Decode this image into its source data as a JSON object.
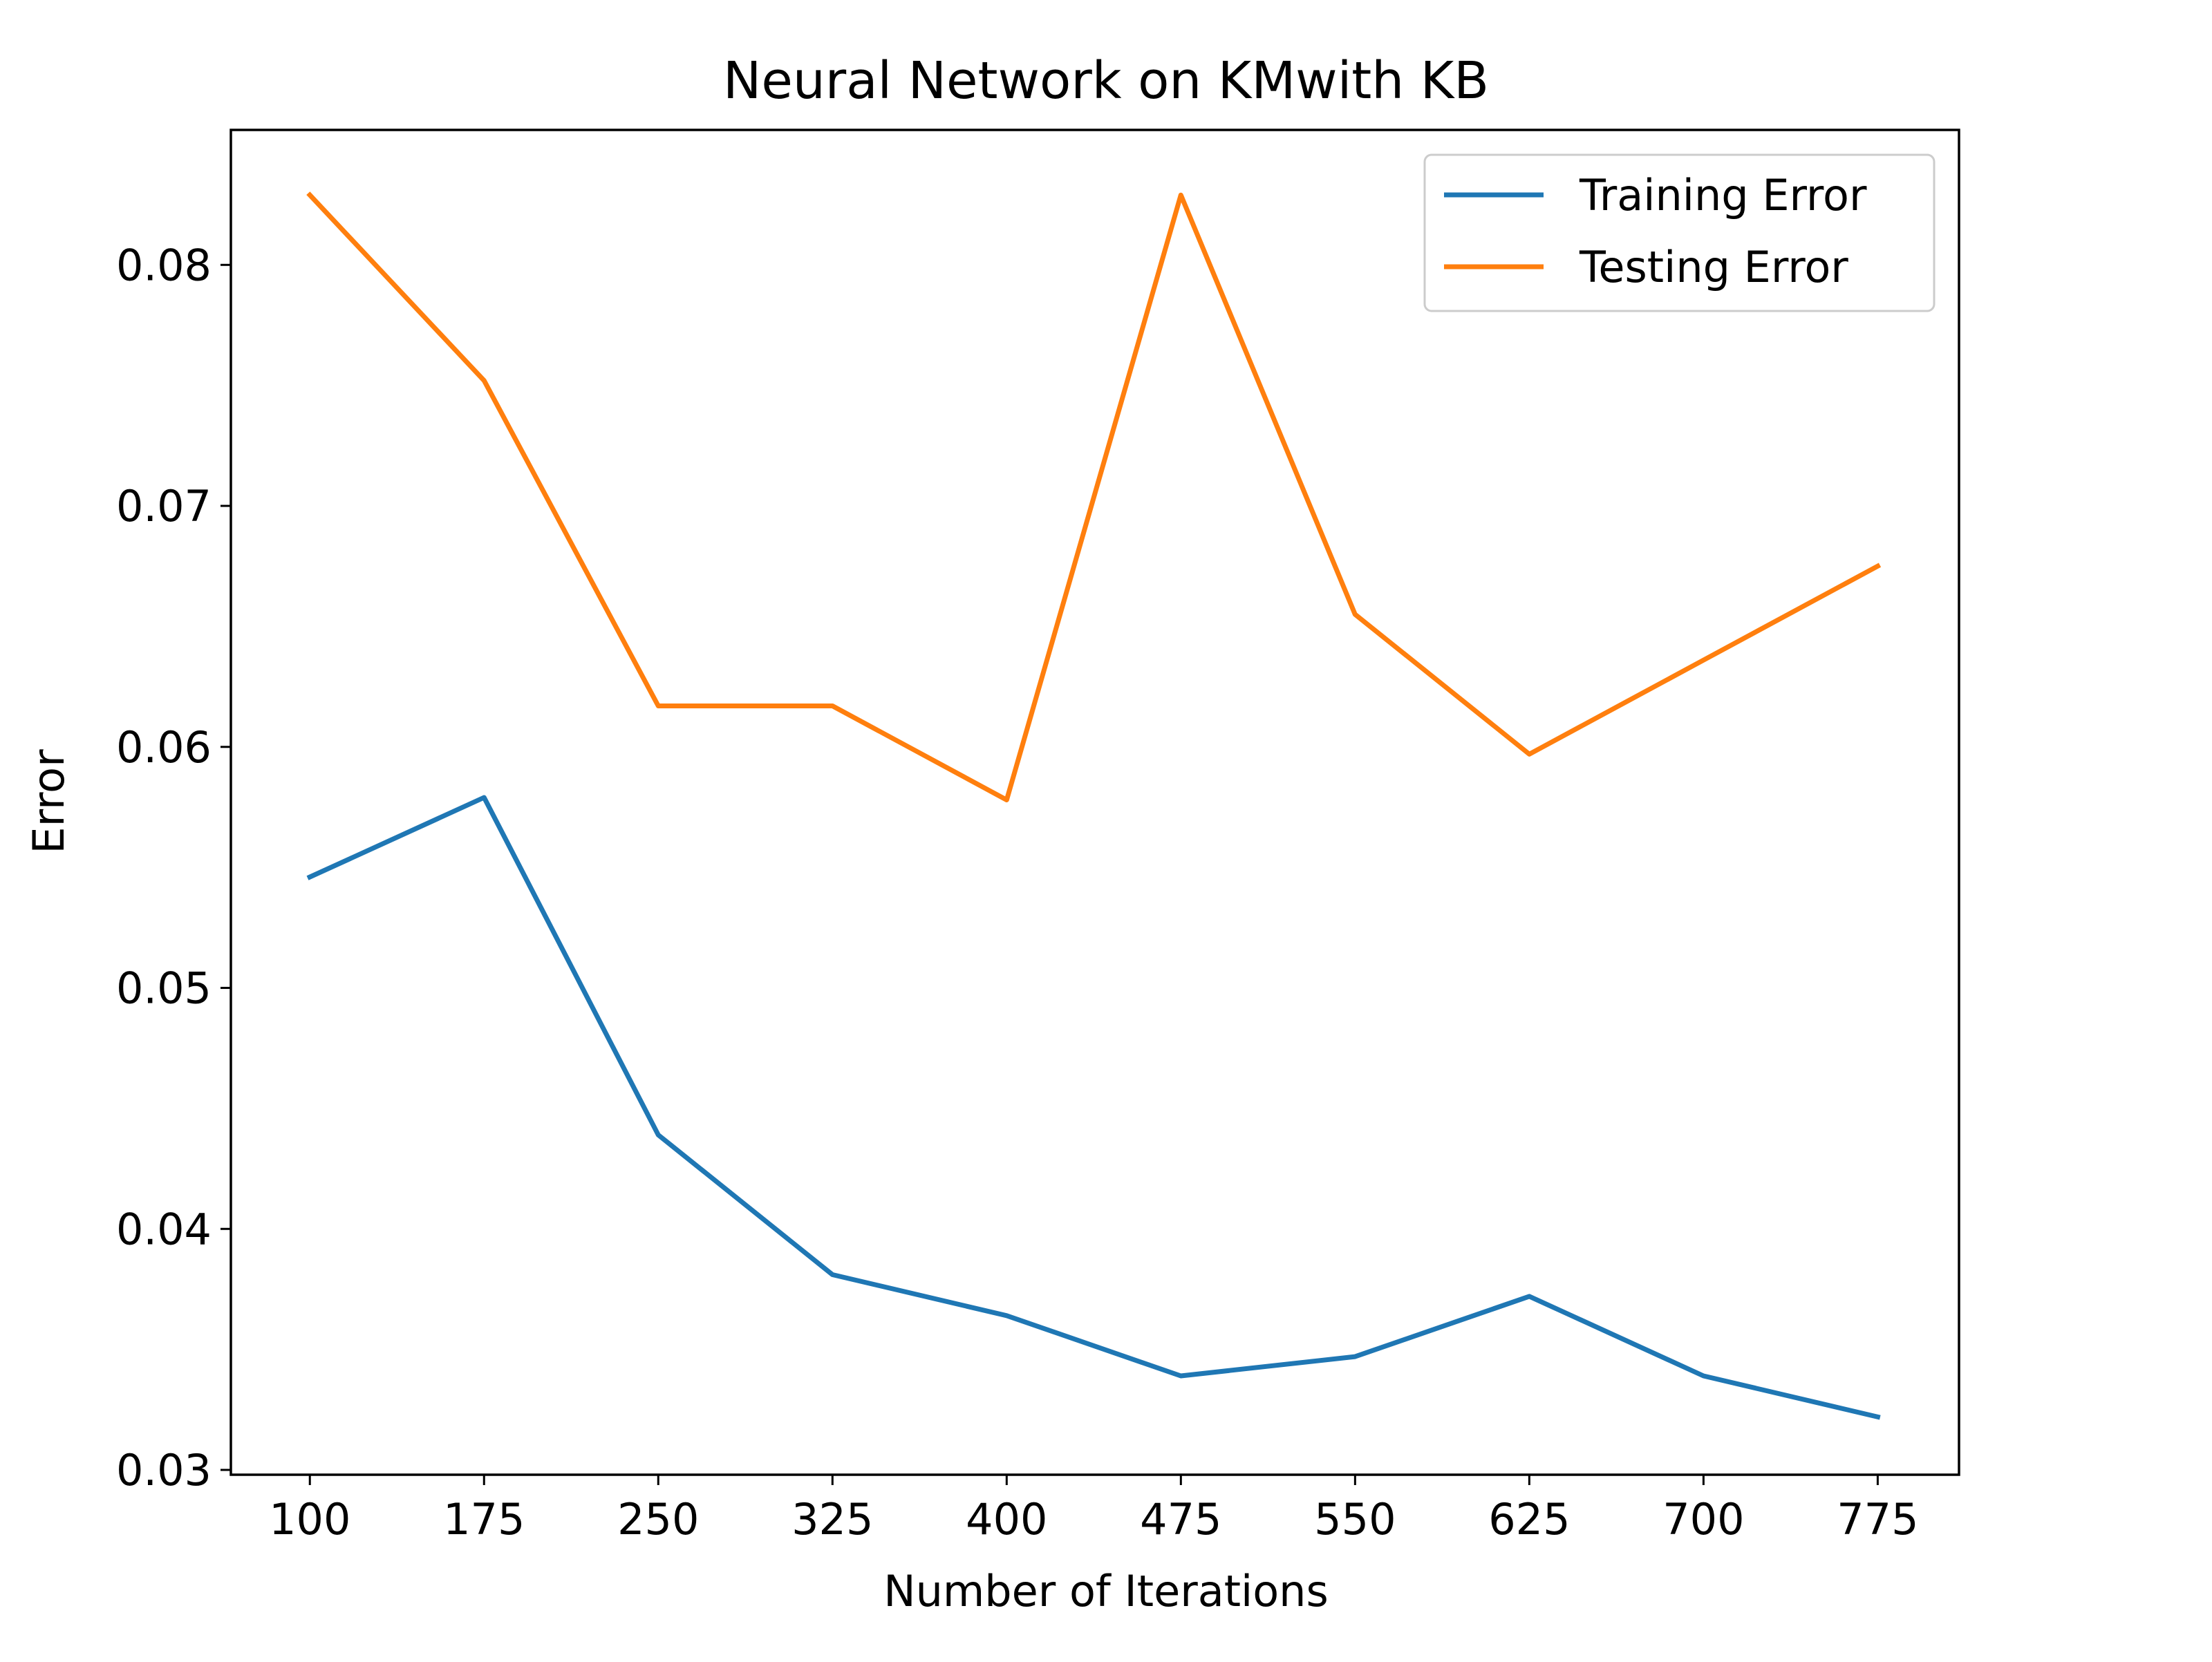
{
  "chart_data": {
    "type": "line",
    "title": "Neural Network on KMwith KB",
    "xlabel": "Number of Iterations",
    "ylabel": "Error",
    "x": [
      100,
      175,
      250,
      325,
      400,
      475,
      550,
      625,
      700,
      775
    ],
    "xticks": [
      "100",
      "175",
      "250",
      "325",
      "400",
      "475",
      "550",
      "625",
      "700",
      "775"
    ],
    "yticks": [
      "0.03",
      "0.04",
      "0.05",
      "0.06",
      "0.07",
      "0.08"
    ],
    "ytick_values": [
      0.03,
      0.04,
      0.05,
      0.06,
      0.07,
      0.08
    ],
    "xlim": [
      66,
      810
    ],
    "ylim": [
      0.0298,
      0.0856
    ],
    "grid": false,
    "legend_position": "top-right",
    "series": [
      {
        "name": "Training Error",
        "color": "#1f77b4",
        "values": [
          0.0546,
          0.0579,
          0.0439,
          0.0381,
          0.0364,
          0.0339,
          0.0347,
          0.0372,
          0.0339,
          0.0322
        ]
      },
      {
        "name": "Testing Error",
        "color": "#ff7f0e",
        "values": [
          0.0829,
          0.0752,
          0.0617,
          0.0617,
          0.0578,
          0.0829,
          0.0655,
          0.0597,
          0.0636,
          0.0675
        ]
      }
    ]
  }
}
